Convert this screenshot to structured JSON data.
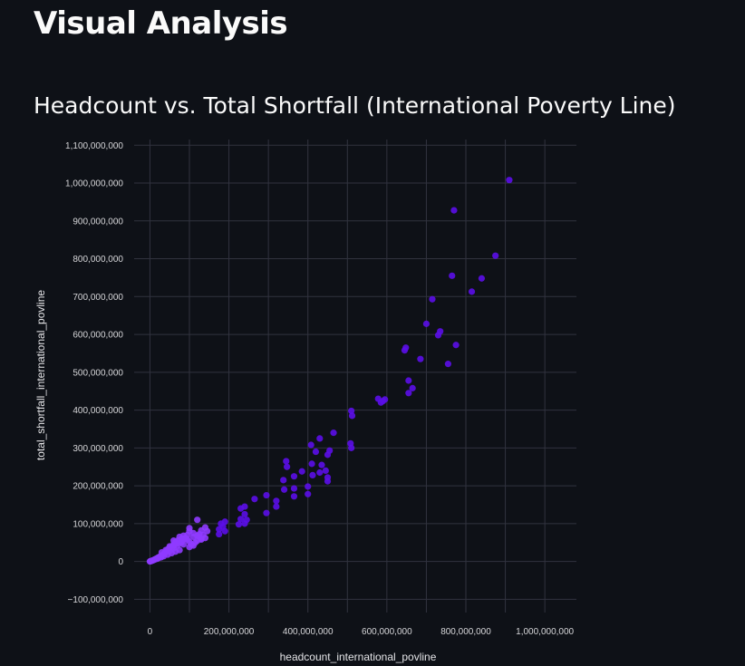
{
  "page": {
    "title": "Visual Analysis"
  },
  "chart": {
    "title": "Headcount vs. Total Shortfall (International Poverty Line)"
  },
  "colors": {
    "background": "#0e1117",
    "marker": "#5b0ee8",
    "marker_light": "#8f3bff",
    "grid": "#31333f",
    "text": "#fafafa"
  },
  "chart_data": {
    "type": "scatter",
    "title": "Headcount vs. Total Shortfall (International Poverty Line)",
    "xlabel": "headcount_international_povline",
    "ylabel": "total_shortfall_international_povline",
    "xlim": [
      -40000000,
      1080000000
    ],
    "ylim": [
      -135000000,
      1115000000
    ],
    "grid": true,
    "x_ticks": [
      0,
      200000000,
      400000000,
      600000000,
      800000000,
      1000000000
    ],
    "x_tick_labels": [
      "0",
      "200,000,000",
      "400,000,000",
      "600,000,000",
      "800,000,000",
      "1,000,000,000"
    ],
    "y_ticks": [
      -100000000,
      0,
      100000000,
      200000000,
      300000000,
      400000000,
      500000000,
      600000000,
      700000000,
      800000000,
      900000000,
      1000000000,
      1100000000
    ],
    "y_tick_labels": [
      "−100,000,000",
      "0",
      "100,000,000",
      "200,000,000",
      "300,000,000",
      "400,000,000",
      "500,000,000",
      "600,000,000",
      "700,000,000",
      "800,000,000",
      "900,000,000",
      "1,000,000,000",
      "1,100,000,000"
    ],
    "x": [
      910000000,
      770000000,
      875000000,
      765000000,
      840000000,
      815000000,
      715000000,
      700000000,
      730000000,
      735000000,
      775000000,
      645000000,
      648000000,
      685000000,
      755000000,
      655000000,
      665000000,
      655000000,
      578000000,
      585000000,
      590000000,
      595000000,
      510000000,
      512000000,
      508000000,
      510000000,
      465000000,
      430000000,
      408000000,
      455000000,
      450000000,
      420000000,
      345000000,
      410000000,
      435000000,
      347000000,
      445000000,
      385000000,
      412000000,
      450000000,
      365000000,
      400000000,
      338000000,
      430000000,
      365000000,
      340000000,
      450000000,
      400000000,
      365000000,
      295000000,
      265000000,
      240000000,
      230000000,
      320000000,
      295000000,
      320000000,
      240000000,
      245000000,
      230000000,
      240000000,
      225000000,
      190000000,
      180000000,
      185000000,
      175000000,
      190000000,
      175000000,
      140000000,
      130000000,
      120000000,
      135000000,
      125000000,
      140000000,
      130000000,
      120000000,
      110000000,
      100000000,
      95000000,
      100000000,
      90000000,
      115000000,
      125000000,
      105000000,
      145000000,
      110000000,
      100000000,
      80000000,
      70000000,
      60000000,
      50000000,
      75000000,
      85000000,
      65000000,
      55000000,
      45000000,
      80000000,
      70000000,
      60000000,
      50000000,
      40000000,
      90000000,
      35000000,
      30000000,
      25000000,
      20000000,
      15000000,
      10000000,
      5000000,
      2000000,
      0,
      75000000,
      65000000,
      55000000,
      45000000,
      35000000,
      28000000,
      22000000,
      18000000,
      12000000,
      8000000,
      4000000,
      1000000,
      30000000,
      40000000,
      50000000,
      60000000,
      70000000,
      80000000,
      95000000,
      110000000,
      120000000,
      60000000,
      85000000,
      100000000,
      130000000
    ],
    "y": [
      1008000000,
      928000000,
      808000000,
      755000000,
      748000000,
      713000000,
      693000000,
      628000000,
      598000000,
      608000000,
      572000000,
      558000000,
      565000000,
      535000000,
      522000000,
      478000000,
      458000000,
      445000000,
      430000000,
      420000000,
      424000000,
      428000000,
      398000000,
      385000000,
      312000000,
      300000000,
      340000000,
      325000000,
      308000000,
      293000000,
      282000000,
      290000000,
      265000000,
      258000000,
      255000000,
      250000000,
      240000000,
      238000000,
      228000000,
      222000000,
      225000000,
      198000000,
      215000000,
      235000000,
      193000000,
      190000000,
      212000000,
      178000000,
      172000000,
      175000000,
      165000000,
      145000000,
      140000000,
      160000000,
      128000000,
      145000000,
      125000000,
      110000000,
      112000000,
      100000000,
      98000000,
      105000000,
      100000000,
      92000000,
      85000000,
      80000000,
      72000000,
      90000000,
      82000000,
      110000000,
      70000000,
      65000000,
      62000000,
      58000000,
      55000000,
      75000000,
      80000000,
      70000000,
      88000000,
      60000000,
      50000000,
      72000000,
      45000000,
      80000000,
      42000000,
      38000000,
      60000000,
      55000000,
      45000000,
      40000000,
      65000000,
      68000000,
      52000000,
      38000000,
      32000000,
      50000000,
      42000000,
      35000000,
      28000000,
      25000000,
      62000000,
      20000000,
      16000000,
      13000000,
      10000000,
      7000000,
      4000000,
      2000000,
      1000000,
      0,
      30000000,
      26000000,
      22000000,
      18000000,
      14000000,
      11000000,
      9000000,
      7000000,
      5000000,
      3000000,
      1500000,
      500000,
      24000000,
      30000000,
      36000000,
      42000000,
      48000000,
      53000000,
      58000000,
      65000000,
      68000000,
      55000000,
      45000000,
      52000000,
      60000000
    ]
  }
}
